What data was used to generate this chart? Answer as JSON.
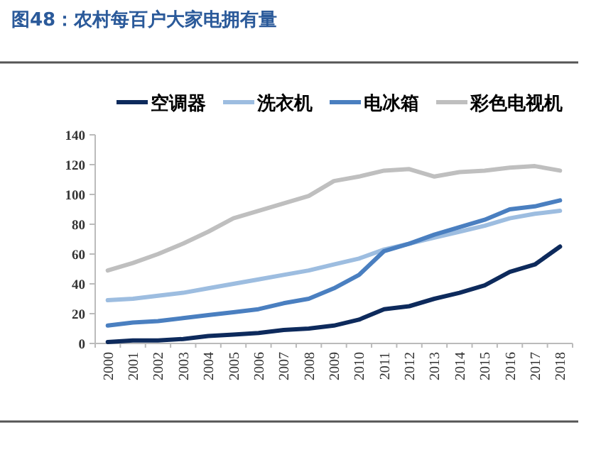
{
  "chart_data": {
    "type": "line",
    "title": "图48：农村每百户大家电拥有量",
    "categories": [
      "2000",
      "2001",
      "2002",
      "2003",
      "2004",
      "2005",
      "2006",
      "2007",
      "2008",
      "2009",
      "2010",
      "2011",
      "2012",
      "2013",
      "2014",
      "2015",
      "2016",
      "2017",
      "2018"
    ],
    "series": [
      {
        "name": "空调器",
        "color": "#0d2a5c",
        "values": [
          1,
          2,
          2,
          3,
          5,
          6,
          7,
          9,
          10,
          12,
          16,
          23,
          25,
          30,
          34,
          39,
          48,
          53,
          65
        ]
      },
      {
        "name": "洗衣机",
        "color": "#9dbde0",
        "values": [
          29,
          30,
          32,
          34,
          37,
          40,
          43,
          46,
          49,
          53,
          57,
          63,
          67,
          71,
          75,
          79,
          84,
          87,
          89
        ]
      },
      {
        "name": "电冰箱",
        "color": "#4a7fc0",
        "values": [
          12,
          14,
          15,
          17,
          19,
          21,
          23,
          27,
          30,
          37,
          46,
          62,
          67,
          73,
          78,
          83,
          90,
          92,
          96
        ]
      },
      {
        "name": "彩色电视机",
        "color": "#bfbfbf",
        "values": [
          49,
          54,
          60,
          67,
          75,
          84,
          89,
          94,
          99,
          109,
          112,
          116,
          117,
          112,
          115,
          116,
          118,
          119,
          116
        ]
      }
    ],
    "ylim": [
      0,
      140
    ],
    "yticks": [
      0,
      20,
      40,
      60,
      80,
      100,
      120,
      140
    ],
    "grid": false,
    "legend": "top",
    "marker": "none",
    "line_style": "solid"
  }
}
